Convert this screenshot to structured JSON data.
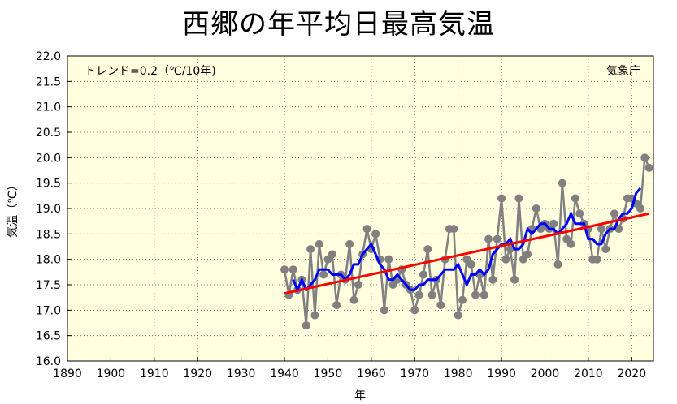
{
  "chart_data": {
    "type": "line",
    "title": "西郷の年平均日最高気温",
    "xlabel": "年",
    "ylabel": "気温（℃）",
    "trend_label": "トレンド=0.2（℃/10年)",
    "source_label": "気象庁",
    "xlim": [
      1890,
      2025
    ],
    "ylim": [
      16.0,
      22.0
    ],
    "x_ticks": [
      1890,
      1900,
      1910,
      1920,
      1930,
      1940,
      1950,
      1960,
      1970,
      1980,
      1990,
      2000,
      2010,
      2020
    ],
    "y_ticks": [
      16.0,
      16.5,
      17.0,
      17.5,
      18.0,
      18.5,
      19.0,
      19.5,
      20.0,
      20.5,
      21.0,
      21.5,
      22.0
    ],
    "grid": true,
    "colors": {
      "background": "#FFFFE0",
      "annual": "#808080",
      "moving_average": "#0000FF",
      "trend": "#FF0000",
      "grid": "#555555"
    },
    "series": [
      {
        "name": "",
        "kind": "annual",
        "x": [
          1940,
          1941,
          1942,
          1943,
          1944,
          1945,
          1946,
          1947,
          1948,
          1949,
          1950,
          1951,
          1952,
          1953,
          1954,
          1955,
          1956,
          1957,
          1958,
          1959,
          1960,
          1961,
          1962,
          1963,
          1964,
          1965,
          1966,
          1967,
          1968,
          1969,
          1970,
          1971,
          1972,
          1973,
          1974,
          1975,
          1976,
          1977,
          1978,
          1979,
          1980,
          1981,
          1982,
          1983,
          1984,
          1985,
          1986,
          1987,
          1988,
          1989,
          1990,
          1991,
          1992,
          1993,
          1994,
          1995,
          1996,
          1997,
          1998,
          1999,
          2000,
          2001,
          2002,
          2003,
          2004,
          2005,
          2006,
          2007,
          2008,
          2009,
          2010,
          2011,
          2012,
          2013,
          2014,
          2015,
          2016,
          2017,
          2018,
          2019,
          2020,
          2021,
          2022,
          2023,
          2024
        ],
        "values": [
          17.8,
          17.3,
          17.8,
          17.4,
          17.6,
          16.7,
          18.2,
          16.9,
          18.3,
          17.7,
          18.0,
          18.1,
          17.1,
          17.7,
          17.6,
          18.3,
          17.2,
          17.5,
          18.1,
          18.6,
          18.2,
          18.5,
          18.0,
          17.0,
          18.0,
          17.5,
          17.6,
          17.8,
          17.5,
          17.4,
          17.0,
          17.3,
          17.7,
          18.2,
          17.3,
          17.6,
          17.1,
          18.0,
          18.6,
          18.6,
          16.9,
          17.2,
          18.0,
          17.9,
          17.3,
          17.7,
          17.3,
          18.4,
          17.6,
          18.4,
          19.2,
          18.0,
          18.2,
          17.6,
          19.2,
          18.0,
          18.1,
          18.6,
          19.0,
          18.6,
          18.7,
          18.6,
          18.7,
          17.9,
          19.5,
          18.4,
          18.3,
          19.2,
          18.9,
          18.7,
          18.6,
          18.0,
          18.0,
          18.6,
          18.2,
          18.6,
          18.9,
          18.6,
          18.8,
          19.2,
          19.2,
          19.1,
          19.0,
          20.0,
          19.8
        ]
      },
      {
        "name": "",
        "kind": "moving_average",
        "x": [
          1942,
          1943,
          1944,
          1945,
          1946,
          1947,
          1948,
          1949,
          1950,
          1951,
          1952,
          1953,
          1954,
          1955,
          1956,
          1957,
          1958,
          1959,
          1960,
          1961,
          1962,
          1963,
          1964,
          1965,
          1966,
          1967,
          1968,
          1969,
          1970,
          1971,
          1972,
          1973,
          1974,
          1975,
          1976,
          1977,
          1978,
          1979,
          1980,
          1981,
          1982,
          1983,
          1984,
          1985,
          1986,
          1987,
          1988,
          1989,
          1990,
          1991,
          1992,
          1993,
          1994,
          1995,
          1996,
          1997,
          1998,
          1999,
          2000,
          2001,
          2002,
          2003,
          2004,
          2005,
          2006,
          2007,
          2008,
          2009,
          2010,
          2011,
          2012,
          2013,
          2014,
          2015,
          2016,
          2017,
          2018,
          2019,
          2020,
          2021,
          2022
        ],
        "values": [
          17.6,
          17.4,
          17.6,
          17.4,
          17.5,
          17.6,
          17.8,
          17.8,
          17.8,
          17.7,
          17.7,
          17.7,
          17.6,
          17.7,
          17.9,
          17.9,
          18.1,
          18.2,
          18.3,
          18.1,
          17.9,
          17.8,
          17.6,
          17.6,
          17.7,
          17.6,
          17.5,
          17.4,
          17.4,
          17.5,
          17.5,
          17.6,
          17.6,
          17.6,
          17.7,
          17.8,
          17.8,
          17.8,
          17.9,
          17.7,
          17.5,
          17.7,
          17.7,
          17.8,
          17.7,
          17.8,
          18.1,
          18.2,
          18.3,
          18.3,
          18.4,
          18.2,
          18.2,
          18.3,
          18.6,
          18.5,
          18.6,
          18.7,
          18.7,
          18.6,
          18.6,
          18.5,
          18.6,
          18.7,
          18.9,
          18.7,
          18.7,
          18.7,
          18.4,
          18.4,
          18.3,
          18.3,
          18.5,
          18.6,
          18.6,
          18.8,
          18.9,
          18.9,
          19.0,
          19.3,
          19.4
        ]
      },
      {
        "name": "",
        "kind": "trend",
        "x": [
          1940,
          2024
        ],
        "values": [
          17.33,
          18.9
        ]
      }
    ]
  }
}
